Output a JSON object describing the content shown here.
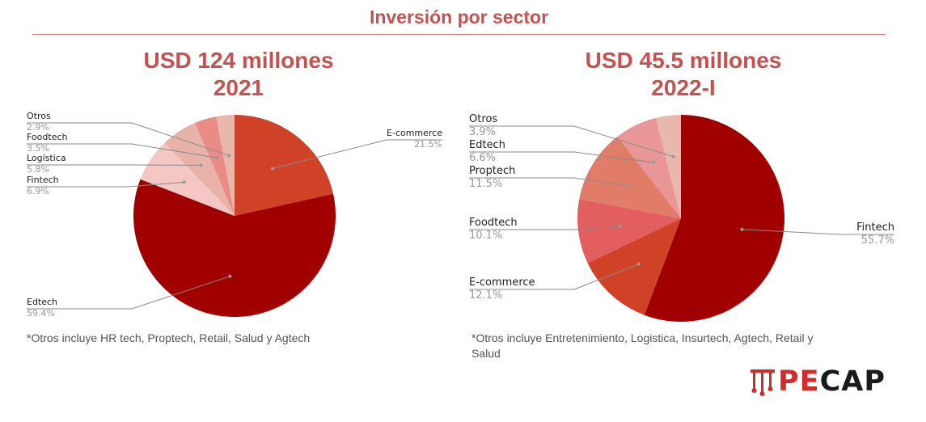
{
  "page": {
    "title": "Inversión por sector"
  },
  "charts": [
    {
      "heading_line1": "USD 124 millones",
      "heading_line2": "2021",
      "footnote": "*Otros incluye  HR tech, Proptech, Retail, Salud y Agtech"
    },
    {
      "heading_line1": "USD 45.5 millones",
      "heading_line2": "2022-I",
      "footnote": "*Otros incluye Entretenimiento, Logistica, Insurtech, Agtech, Retail y Salud"
    }
  ],
  "logo": {
    "text_pe": "PE",
    "text_cap": "CAP"
  },
  "chart_data": [
    {
      "type": "pie",
      "title": "USD 124 millones 2021",
      "slices": [
        {
          "label": "E-commerce",
          "value": 21.5,
          "value_label": "21.5%",
          "color": "#d04227"
        },
        {
          "label": "Edtech",
          "value": 59.4,
          "value_label": "59.4%",
          "color": "#a10000"
        },
        {
          "label": "Fintech",
          "value": 6.9,
          "value_label": "6.9%",
          "color": "#f4c7c4"
        },
        {
          "label": "Logística",
          "value": 5.8,
          "value_label": "5.8%",
          "color": "#e8b2a8"
        },
        {
          "label": "Foodtech",
          "value": 3.5,
          "value_label": "3.5%",
          "color": "#e98b87"
        },
        {
          "label": "Otros",
          "value": 2.9,
          "value_label": "2.9%",
          "color": "#e8b8ad"
        }
      ]
    },
    {
      "type": "pie",
      "title": "USD 45.5 millones 2022-I",
      "slices": [
        {
          "label": "Fintech",
          "value": 55.7,
          "value_label": "55.7%",
          "color": "#a10000"
        },
        {
          "label": "E-commerce",
          "value": 12.1,
          "value_label": "12.1%",
          "color": "#d04227"
        },
        {
          "label": "Foodtech",
          "value": 10.1,
          "value_label": "10.1%",
          "color": "#e35e5e"
        },
        {
          "label": "Proptech",
          "value": 11.5,
          "value_label": "11.5%",
          "color": "#e07c67"
        },
        {
          "label": "Edtech",
          "value": 6.6,
          "value_label": "6.6%",
          "color": "#e89696"
        },
        {
          "label": "Otros",
          "value": 3.9,
          "value_label": "3.9%",
          "color": "#e8b8ad"
        }
      ]
    }
  ]
}
